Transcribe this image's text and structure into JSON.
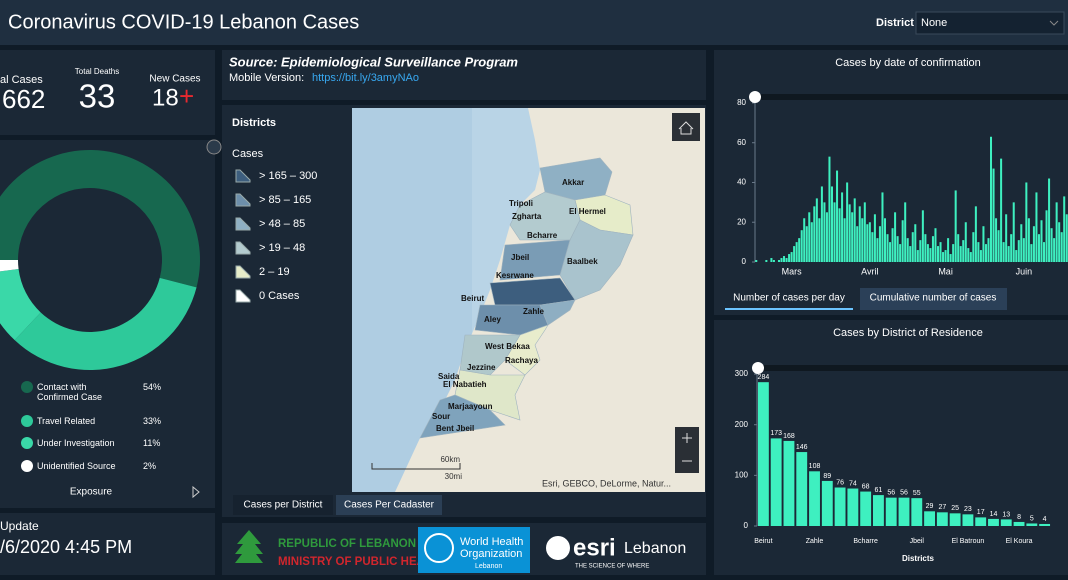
{
  "header": {
    "title": "Coronavirus COVID-19 Lebanon Cases",
    "district_label": "District",
    "district_value": "None"
  },
  "stats": {
    "total_cases_label": "al Cases",
    "total_cases": 662,
    "total_deaths_label": "Total Deaths",
    "total_deaths": 33,
    "new_cases_label": "New Cases",
    "new_cases": 18,
    "new_cases_sign": "+"
  },
  "update": {
    "label": "Update",
    "value": "/6/2020 4:45 PM"
  },
  "source": {
    "text": "Source: Epidemiological Surveillance Program",
    "mobile_label": "Mobile Version:",
    "mobile_url": "https://bit.ly/3amyNAo"
  },
  "map": {
    "legend_title": "Districts",
    "legend_subtitle": "Cases",
    "legend_items": [
      {
        "label": "> 165 – 300",
        "color": "#3d5e7e"
      },
      {
        "label": "> 85 – 165",
        "color": "#6d8fab"
      },
      {
        "label": "> 48 – 85",
        "color": "#8fb0c4"
      },
      {
        "label": "> 19 – 48",
        "color": "#b3cbcf"
      },
      {
        "label": "2 – 19",
        "color": "#e6ecc9"
      },
      {
        "label": "0 Cases",
        "color": "#ffffff"
      }
    ],
    "districts": [
      "Akkar",
      "Tripoli",
      "Zgharta",
      "El Hermel",
      "Bcharre",
      "Jbeil",
      "Baalbek",
      "Kesrwane",
      "Beirut",
      "Aley",
      "Zahle",
      "West Bekaa",
      "Rachaya",
      "Jezzine",
      "Saida",
      "El Nabatieh",
      "Marjaayoun",
      "Sour",
      "Bent Jbeil"
    ],
    "attribution": "Esri, GEBCO, DeLorme, Natur...",
    "scale_km": "60km",
    "scale_mi": "30mi",
    "tabs": [
      "Cases per District",
      "Cases Per Cadaster"
    ]
  },
  "logos": {
    "moph_line1": "REPUBLIC OF LEBANON",
    "moph_line2": "MINISTRY OF PUBLIC HEALTH",
    "who_line1": "World Health",
    "who_line2": "Organization",
    "who_line3": "Lebanon",
    "esri": "esri",
    "esri_country": "Lebanon",
    "esri_tagline": "THE SCIENCE OF WHERE"
  },
  "chart_data": [
    {
      "type": "pie",
      "donut": true,
      "title": "Exposure",
      "categories": [
        "Contact with Confirmed Case",
        "Travel Related",
        "Under Investigation",
        "Unidentified Source"
      ],
      "values": [
        54,
        33,
        11,
        2
      ],
      "value_labels": [
        "54%",
        "33%",
        "11%",
        "2%"
      ],
      "colors": [
        "#17684f",
        "#2ec99a",
        "#3ad8a8",
        "#ffffff"
      ]
    },
    {
      "type": "bar",
      "title": "Cases by date of confirmation",
      "color": "#3ef0c0",
      "categories": [
        null,
        null,
        null,
        null,
        null,
        null,
        null,
        null,
        null,
        null,
        null,
        null,
        null,
        null,
        "Mars",
        null,
        null,
        null,
        null,
        null,
        null,
        null,
        null,
        null,
        null,
        null,
        null,
        null,
        null,
        null,
        null,
        null,
        null,
        null,
        null,
        null,
        null,
        null,
        null,
        null,
        null,
        null,
        null,
        null,
        null,
        "Avril",
        null,
        null,
        null,
        null,
        null,
        null,
        null,
        null,
        null,
        null,
        null,
        null,
        null,
        null,
        null,
        null,
        null,
        null,
        null,
        null,
        null,
        null,
        null,
        null,
        null,
        null,
        null,
        null,
        null,
        "Mai",
        null,
        null,
        null,
        null,
        null,
        null,
        null,
        null,
        null,
        null,
        null,
        null,
        null,
        null,
        null,
        null,
        null,
        null,
        null,
        null,
        null,
        null,
        null,
        null,
        null,
        null,
        null,
        null,
        null,
        null,
        "Juin",
        null,
        null,
        null,
        null,
        null,
        null,
        null,
        null,
        null,
        null,
        null,
        null,
        null,
        null,
        null,
        null,
        null
      ],
      "values": [
        1,
        0,
        0,
        0,
        1,
        0,
        2,
        1,
        0,
        1,
        2,
        3,
        2,
        4,
        5,
        8,
        10,
        12,
        16,
        22,
        18,
        25,
        20,
        28,
        32,
        22,
        38,
        30,
        25,
        53,
        38,
        30,
        46,
        27,
        35,
        22,
        40,
        29,
        25,
        32,
        18,
        28,
        22,
        30,
        19,
        20,
        15,
        24,
        12,
        18,
        35,
        22,
        14,
        10,
        17,
        25,
        13,
        9,
        21,
        30,
        12,
        8,
        15,
        19,
        6,
        11,
        26,
        14,
        9,
        7,
        13,
        17,
        8,
        10,
        5,
        6,
        12,
        4,
        9,
        36,
        14,
        8,
        11,
        20,
        7,
        5,
        15,
        28,
        10,
        6,
        18,
        9,
        12,
        63,
        47,
        22,
        16,
        52,
        10,
        24,
        8,
        14,
        30,
        6,
        11,
        19,
        12,
        40,
        22,
        9,
        18,
        35,
        14,
        21,
        10,
        26,
        42,
        17,
        12,
        30,
        20,
        15,
        33,
        24
      ],
      "ylim": [
        0,
        83
      ],
      "yticks": [
        0,
        20,
        40,
        60,
        80
      ],
      "grid": false,
      "tabs": [
        "Number of cases per day",
        "Cumulative number of cases"
      ]
    },
    {
      "type": "bar",
      "title": "Cases by District of Residence",
      "x_label": "Districts",
      "color": "#3ef0c0",
      "show_value_labels": true,
      "categories": [
        "Beirut",
        null,
        null,
        null,
        "Zahle",
        null,
        null,
        null,
        "Bcharre",
        null,
        null,
        null,
        "Jbeil",
        null,
        null,
        null,
        "El Batroun",
        null,
        null,
        null,
        "El Koura",
        null,
        null
      ],
      "values": [
        284,
        173,
        168,
        146,
        108,
        89,
        76,
        74,
        68,
        61,
        56,
        56,
        55,
        29,
        27,
        25,
        23,
        17,
        14,
        13,
        8,
        5,
        4
      ],
      "ylim": [
        0,
        312
      ],
      "yticks": [
        0,
        100,
        200,
        300
      ],
      "grid": false
    }
  ]
}
